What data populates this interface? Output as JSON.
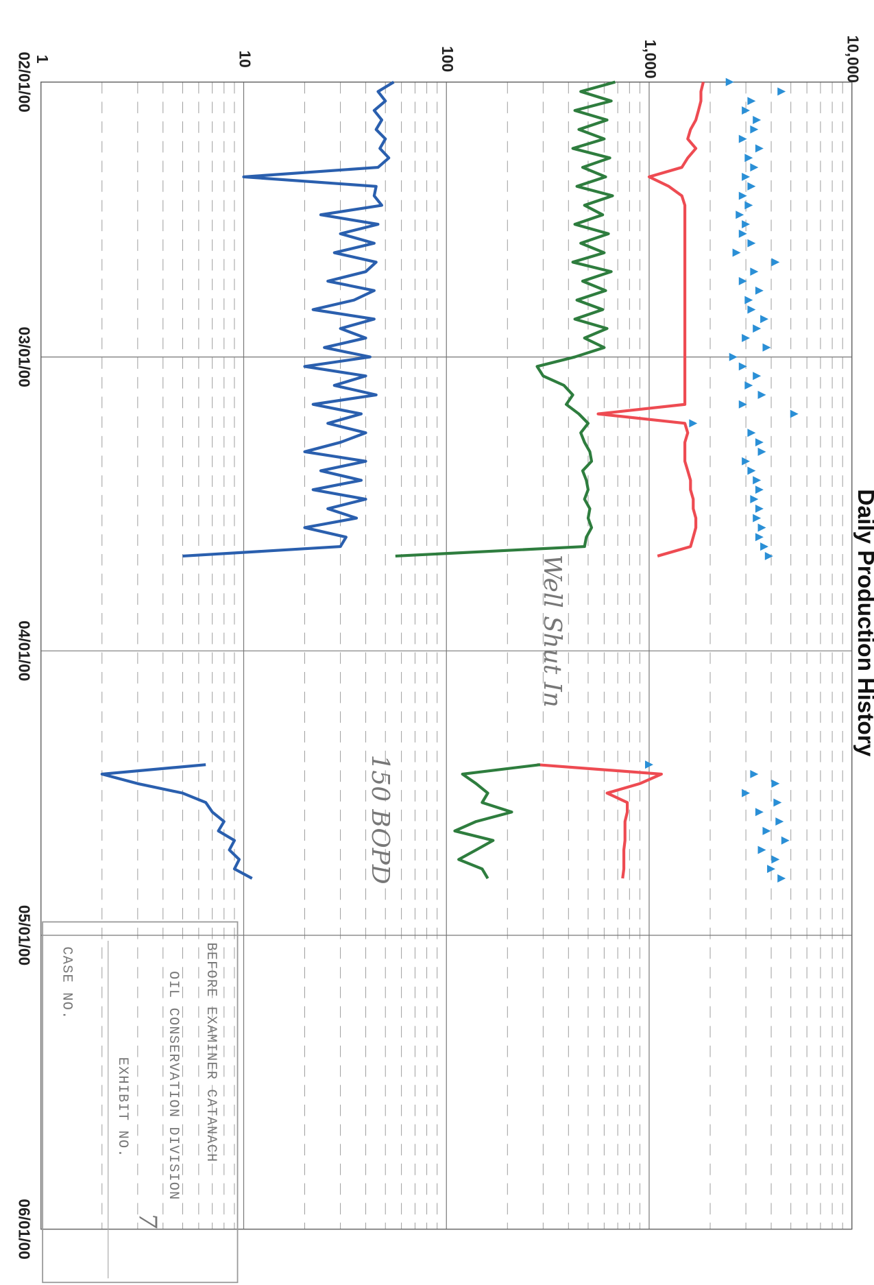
{
  "chart_data": {
    "type": "line",
    "title": "Daily Production History",
    "log_scale": true,
    "grid": true,
    "x": [
      "02/01/00",
      "02/02/00",
      "02/03/00",
      "02/04/00",
      "02/05/00",
      "02/06/00",
      "02/07/00",
      "02/08/00",
      "02/09/00",
      "02/10/00",
      "02/11/00",
      "02/12/00",
      "02/13/00",
      "02/14/00",
      "02/15/00",
      "02/16/00",
      "02/17/00",
      "02/18/00",
      "02/19/00",
      "02/20/00",
      "02/21/00",
      "02/22/00",
      "02/23/00",
      "02/24/00",
      "02/25/00",
      "02/26/00",
      "02/27/00",
      "02/28/00",
      "02/29/00",
      "03/01/00",
      "03/02/00",
      "03/03/00",
      "03/04/00",
      "03/05/00",
      "03/06/00",
      "03/07/00",
      "03/08/00",
      "03/09/00",
      "03/10/00",
      "03/11/00",
      "03/12/00",
      "03/13/00",
      "03/14/00",
      "03/15/00",
      "03/16/00",
      "03/17/00",
      "03/18/00",
      "03/19/00",
      "03/20/00",
      "03/21/00",
      "03/22/00",
      "03/23/00",
      "04/13/00",
      "04/14/00",
      "04/15/00",
      "04/16/00",
      "04/17/00",
      "04/18/00",
      "04/19/00",
      "04/20/00",
      "04/21/00",
      "04/22/00",
      "04/23/00",
      "04/24/00",
      "04/25/00"
    ],
    "xlim": [
      "02/01/00",
      "06/01/00"
    ],
    "xticks": [
      "02/01/00",
      "03/01/00",
      "04/01/00",
      "05/01/00",
      "06/01/00"
    ],
    "ylim": [
      1,
      10000
    ],
    "yticks": [
      1,
      10,
      100,
      {
        "value": 1000,
        "label": "1,000"
      },
      {
        "value": 10000,
        "label": "10,000"
      }
    ],
    "series": [
      {
        "type": "line",
        "color": "#ee4b52",
        "values": [
          1850,
          1800,
          1800,
          1750,
          1700,
          1600,
          1550,
          1700,
          1550,
          1450,
          1000,
          1250,
          1450,
          1500,
          1500,
          1500,
          1500,
          1500,
          1500,
          1500,
          1500,
          1500,
          1500,
          1500,
          1500,
          1500,
          1500,
          1500,
          1500,
          1500,
          1500,
          1500,
          1500,
          1500,
          1500,
          560,
          1500,
          1550,
          1500,
          1500,
          1500,
          1550,
          1600,
          1600,
          1650,
          1650,
          1700,
          1700,
          1650,
          1600,
          1100,
          null,
          280,
          1150,
          900,
          620,
          780,
          780,
          760,
          760,
          760,
          750,
          750,
          750,
          740
        ]
      },
      {
        "type": "scatter",
        "marker": "triangle",
        "color": "#2a8fd6",
        "values": [
          2500,
          4500,
          3200,
          3000,
          3400,
          3300,
          2900,
          3500,
          3100,
          3300,
          3000,
          3200,
          2900,
          3100,
          2800,
          3000,
          2900,
          3200,
          2700,
          4200,
          3300,
          2900,
          3500,
          3100,
          3200,
          3700,
          3400,
          3000,
          3800,
          2600,
          2900,
          3400,
          3100,
          3600,
          2900,
          5200,
          1650,
          3200,
          3500,
          3600,
          3000,
          3200,
          3400,
          3500,
          3300,
          3500,
          3400,
          3600,
          3500,
          3700,
          3900,
          null,
          1000,
          3300,
          4200,
          3000,
          4300,
          3500,
          4400,
          3800,
          4700,
          3600,
          4200,
          4000,
          4500
        ]
      },
      {
        "type": "line",
        "color": "#2e7d3e",
        "values": [
          680,
          460,
          650,
          430,
          620,
          450,
          600,
          420,
          640,
          470,
          610,
          440,
          660,
          480,
          590,
          430,
          630,
          460,
          600,
          420,
          650,
          470,
          610,
          440,
          590,
          430,
          620,
          480,
          600,
          430,
          280,
          300,
          380,
          420,
          390,
          450,
          500,
          460,
          480,
          510,
          520,
          470,
          490,
          500,
          480,
          510,
          500,
          520,
          490,
          480,
          56,
          null,
          290,
          120,
          140,
          160,
          150,
          210,
          140,
          110,
          170,
          140,
          115,
          150,
          160
        ]
      },
      {
        "type": "line",
        "color": "#2a5fae",
        "values": [
          55,
          46,
          50,
          44,
          48,
          45,
          50,
          47,
          52,
          46,
          10,
          45,
          44,
          48,
          24,
          46,
          30,
          44,
          28,
          45,
          40,
          26,
          44,
          35,
          22,
          44,
          30,
          40,
          25,
          42,
          20,
          40,
          28,
          45,
          22,
          38,
          26,
          40,
          30,
          20,
          40,
          24,
          38,
          22,
          40,
          26,
          36,
          20,
          32,
          30,
          5,
          null,
          6.5,
          2,
          3,
          5,
          6.5,
          7,
          8,
          7.5,
          9,
          8.5,
          9.5,
          9,
          11
        ]
      }
    ],
    "annotations": [
      "Well Shut In",
      "150 BOPD"
    ]
  },
  "stamp": {
    "line1": "BEFORE EXAMINER CATANACH",
    "line2": "OIL CONSERVATION DIVISION",
    "exhibit": "EXHIBIT NO.",
    "exhibit_number": "7",
    "case": "CASE NO."
  }
}
